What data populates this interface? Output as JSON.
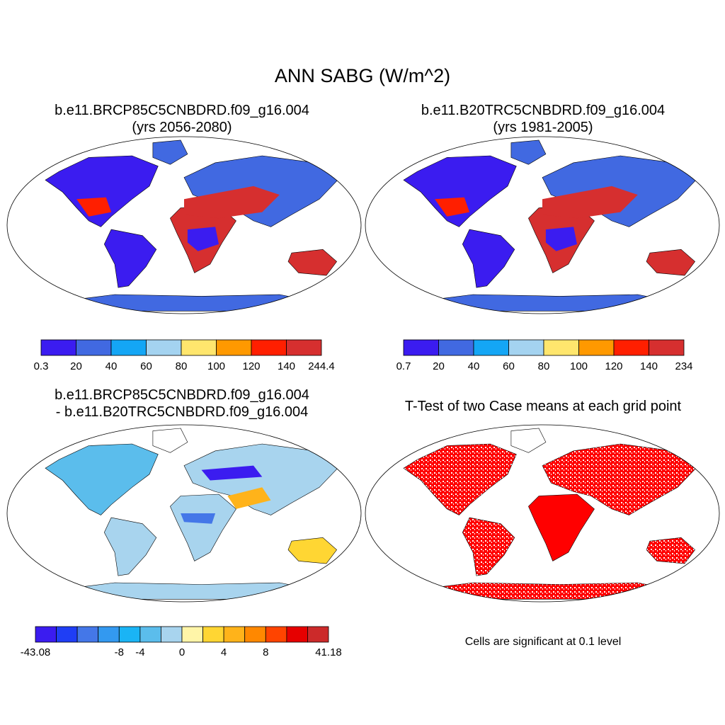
{
  "title": "ANN SABG (W/m^2)",
  "panels": [
    {
      "id": "case",
      "title_line1": "b.e11.BRCP85C5CNBDRD.f09_g16.004",
      "title_line2": "(yrs 2056-2080)",
      "colorbar": {
        "labels": [
          "0.3",
          "20",
          "40",
          "60",
          "80",
          "100",
          "120",
          "140",
          "244.4"
        ],
        "colors": [
          "#3b1cf0",
          "#4169e1",
          "#14a6f5",
          "#a4d3f0",
          "#ffe66d",
          "#ff9900",
          "#ff1f00",
          "#d62f2f"
        ]
      }
    },
    {
      "id": "control",
      "title_line1": "b.e11.B20TRC5CNBDRD.f09_g16.004",
      "title_line2": "(yrs 1981-2005)",
      "colorbar": {
        "labels": [
          "0.7",
          "20",
          "40",
          "60",
          "80",
          "100",
          "120",
          "140",
          "234"
        ],
        "colors": [
          "#3b1cf0",
          "#4169e1",
          "#14a6f5",
          "#a4d3f0",
          "#ffe66d",
          "#ff9900",
          "#ff1f00",
          "#d62f2f"
        ]
      }
    },
    {
      "id": "difference",
      "title_line1": "b.e11.BRCP85C5CNBDRD.f09_g16.004",
      "title_line2": "- b.e11.B20TRC5CNBDRD.f09_g16.004",
      "colorbar": {
        "labels": [
          "-43.08",
          "-8",
          "-4",
          "0",
          "4",
          "8",
          "41.18"
        ],
        "colors": [
          "#3b1cf0",
          "#1f3ef5",
          "#4477e8",
          "#3399f0",
          "#1ab4f5",
          "#5bbdec",
          "#a8d4ee",
          "#fff5a8",
          "#ffd633",
          "#ffb31a",
          "#ff8800",
          "#ff4400",
          "#e60000",
          "#cc2a2a"
        ]
      }
    },
    {
      "id": "ttest",
      "title_line1": "T-Test of two Case means at each grid point",
      "note": "Cells are significant at 0.1 level",
      "sig_color": "#ff0000"
    }
  ]
}
